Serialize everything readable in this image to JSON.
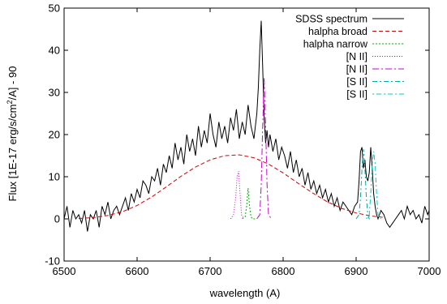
{
  "chart_data": {
    "type": "line",
    "xlabel": "wavelength (A)",
    "ylabel_parts": [
      "Flux [1E-17 erg/s/cm",
      "2",
      "/A] - 90"
    ],
    "xlim": [
      6500,
      7000
    ],
    "ylim": [
      -10,
      50
    ],
    "x_ticks": [
      6500,
      6600,
      6700,
      6800,
      6900,
      7000
    ],
    "y_ticks": [
      -10,
      0,
      10,
      20,
      30,
      40,
      50
    ],
    "grid": false,
    "legend_position": "top-right",
    "series": [
      {
        "name": "SDSS spectrum",
        "color": "#000000",
        "dash": "",
        "x": [
          6500,
          6504,
          6508,
          6512,
          6516,
          6520,
          6524,
          6528,
          6532,
          6536,
          6540,
          6544,
          6548,
          6552,
          6556,
          6560,
          6564,
          6568,
          6572,
          6576,
          6580,
          6584,
          6588,
          6592,
          6596,
          6600,
          6604,
          6608,
          6612,
          6616,
          6620,
          6624,
          6628,
          6632,
          6636,
          6640,
          6644,
          6648,
          6652,
          6656,
          6660,
          6664,
          6668,
          6672,
          6676,
          6680,
          6684,
          6688,
          6692,
          6696,
          6700,
          6704,
          6708,
          6712,
          6716,
          6720,
          6724,
          6728,
          6732,
          6736,
          6740,
          6744,
          6748,
          6752,
          6756,
          6760,
          6764,
          6766,
          6768,
          6770,
          6772,
          6774,
          6776,
          6778,
          6780,
          6782,
          6786,
          6790,
          6794,
          6798,
          6802,
          6806,
          6810,
          6814,
          6818,
          6822,
          6826,
          6830,
          6834,
          6838,
          6842,
          6846,
          6850,
          6854,
          6858,
          6862,
          6866,
          6870,
          6874,
          6878,
          6882,
          6886,
          6890,
          6894,
          6898,
          6902,
          6904,
          6906,
          6908,
          6910,
          6912,
          6914,
          6916,
          6918,
          6920,
          6922,
          6924,
          6926,
          6928,
          6930,
          6934,
          6938,
          6942,
          6946,
          6950,
          6954,
          6958,
          6962,
          6966,
          6970,
          6974,
          6978,
          6982,
          6986,
          6990,
          6994,
          6998,
          7000
        ],
        "y": [
          0,
          3,
          -2,
          2,
          0,
          1,
          -1,
          2,
          -3,
          1,
          0,
          2,
          -2,
          3,
          1,
          4,
          0,
          2,
          3,
          1,
          3,
          5,
          2,
          6,
          4,
          7,
          5,
          9,
          8,
          6,
          10,
          9,
          12,
          8,
          13,
          11,
          15,
          12,
          18,
          14,
          17,
          13,
          20,
          16,
          19,
          15,
          22,
          17,
          21,
          18,
          25,
          20,
          17,
          23,
          19,
          22,
          18,
          24,
          21,
          26,
          19,
          23,
          20,
          27,
          22,
          19,
          25,
          31,
          40,
          47,
          36,
          24,
          18,
          21,
          17,
          20,
          16,
          19,
          14,
          17,
          15,
          12,
          16,
          11,
          14,
          10,
          12,
          8,
          11,
          7,
          9,
          6,
          8,
          5,
          7,
          4,
          6,
          3,
          5,
          2,
          4,
          3,
          2,
          1,
          3,
          4,
          9,
          16,
          17,
          12,
          14,
          10,
          9,
          11,
          17,
          12,
          6,
          3,
          1,
          0,
          2,
          1,
          -1,
          -2,
          -1,
          0,
          1,
          2,
          0,
          3,
          1,
          2,
          0,
          1,
          -1,
          3,
          1,
          2
        ]
      },
      {
        "name": "halpha broad",
        "color": "#d40000",
        "dash": "5,3",
        "x": [
          6520,
          6540,
          6560,
          6580,
          6600,
          6620,
          6640,
          6660,
          6680,
          6700,
          6720,
          6740,
          6760,
          6780,
          6800,
          6820,
          6840,
          6860,
          6880,
          6900,
          6920,
          6940
        ],
        "y": [
          0.1,
          0.3,
          0.8,
          1.7,
          3.2,
          5.2,
          7.6,
          10.1,
          12.3,
          14.0,
          15.0,
          15.2,
          14.5,
          13.0,
          10.9,
          8.5,
          6.2,
          4.1,
          2.5,
          1.4,
          0.7,
          0.3
        ]
      },
      {
        "name": "halpha narrow",
        "color": "#00b400",
        "dash": "2,2",
        "x": [
          6744,
          6748,
          6750,
          6752,
          6754,
          6756,
          6758,
          6762
        ],
        "y": [
          0,
          0.5,
          3,
          7.3,
          3,
          0.5,
          0,
          0
        ]
      },
      {
        "name": "[N II]",
        "color": "#cc00cc",
        "dash": "1,2",
        "x": [
          6728,
          6732,
          6735,
          6737,
          6739,
          6741,
          6743,
          6746
        ],
        "y": [
          0,
          1,
          5,
          10,
          11.3,
          6,
          1,
          0
        ]
      },
      {
        "name": "[N II]",
        "color": "#cc00cc",
        "dash": "8,3,2,3",
        "x": [
          6764,
          6768,
          6770,
          6772,
          6774,
          6776,
          6778,
          6780,
          6784
        ],
        "y": [
          0,
          1,
          8,
          22,
          33.5,
          22,
          8,
          1,
          0
        ]
      },
      {
        "name": "[S II]",
        "color": "#00aaaa",
        "dash": "6,3,2,3",
        "x": [
          6900,
          6904,
          6906,
          6908,
          6910,
          6912,
          6914,
          6916,
          6918,
          6922
        ],
        "y": [
          0,
          1,
          5,
          12,
          16.5,
          12,
          5,
          1,
          0,
          0
        ]
      },
      {
        "name": "[S II]",
        "color": "#00cccc",
        "dash": "2,3,6,3",
        "x": [
          6914,
          6918,
          6920,
          6922,
          6924,
          6926,
          6928,
          6930,
          6934
        ],
        "y": [
          0,
          1,
          6,
          13,
          16,
          13,
          6,
          1,
          0
        ]
      }
    ]
  }
}
